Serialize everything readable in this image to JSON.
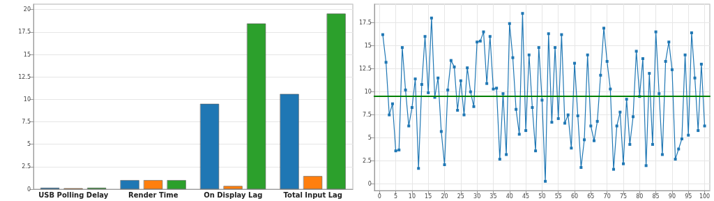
{
  "chart_data": [
    {
      "type": "bar",
      "categories": [
        "USB Polling Delay",
        "Render Time",
        "On Display Lag",
        "Total Input Lag"
      ],
      "series": [
        {
          "color": "#1f77b4",
          "values": [
            0.15,
            1.0,
            9.5,
            10.6
          ]
        },
        {
          "color": "#ff7f0e",
          "values": [
            0.1,
            1.0,
            0.35,
            1.45
          ]
        },
        {
          "color": "#2ca02c",
          "values": [
            0.15,
            1.0,
            18.45,
            19.55
          ]
        }
      ],
      "ylim": [
        0,
        20.6
      ],
      "yticks": [
        0,
        2.5,
        5,
        7.5,
        10,
        12.5,
        15,
        17.5,
        20
      ],
      "grid": "y"
    },
    {
      "type": "line",
      "x": [
        1,
        2,
        3,
        4,
        5,
        6,
        7,
        8,
        9,
        10,
        11,
        12,
        13,
        14,
        15,
        16,
        17,
        18,
        19,
        20,
        21,
        22,
        23,
        24,
        25,
        26,
        27,
        28,
        29,
        30,
        31,
        32,
        33,
        34,
        35,
        36,
        37,
        38,
        39,
        40,
        41,
        42,
        43,
        44,
        45,
        46,
        47,
        48,
        49,
        50,
        51,
        52,
        53,
        54,
        55,
        56,
        57,
        58,
        59,
        60,
        61,
        62,
        63,
        64,
        65,
        66,
        67,
        68,
        69,
        70,
        71,
        72,
        73,
        74,
        75,
        76,
        77,
        78,
        79,
        80,
        81,
        82,
        83,
        84,
        85,
        86,
        87,
        88,
        89,
        90,
        91,
        92,
        93,
        94,
        95,
        96,
        97,
        98,
        99,
        100
      ],
      "series": [
        {
          "color": "#1f77b4",
          "values": [
            16.2,
            13.2,
            7.5,
            8.7,
            3.6,
            3.7,
            14.8,
            10.2,
            6.3,
            8.3,
            11.4,
            1.7,
            10.8,
            16.0,
            9.9,
            18.0,
            9.4,
            11.5,
            5.7,
            2.1,
            10.2,
            13.4,
            12.7,
            8.0,
            11.2,
            7.5,
            12.6,
            10.0,
            8.4,
            15.4,
            15.5,
            16.5,
            10.9,
            16.0,
            10.3,
            10.4,
            2.7,
            9.8,
            3.2,
            17.4,
            13.7,
            8.1,
            5.4,
            18.5,
            5.8,
            14.0,
            8.3,
            3.6,
            14.8,
            9.1,
            0.3,
            16.3,
            6.7,
            14.8,
            7.1,
            16.2,
            6.6,
            7.5,
            3.9,
            13.1,
            7.4,
            1.8,
            4.8,
            14.0,
            6.3,
            4.7,
            6.8,
            11.8,
            16.9,
            13.3,
            10.3,
            1.6,
            6.3,
            7.8,
            2.2,
            9.2,
            4.3,
            7.3,
            14.4,
            9.5,
            13.6,
            2.0,
            12.0,
            4.3,
            16.5,
            9.8,
            3.2,
            13.3,
            15.4,
            12.4,
            2.7,
            3.8,
            4.9,
            14.0,
            5.3,
            16.4,
            11.5,
            5.8,
            13.0,
            6.3
          ]
        }
      ],
      "xlim": [
        -1.6,
        101.6
      ],
      "xticks": [
        0,
        5,
        10,
        15,
        20,
        25,
        30,
        35,
        40,
        45,
        50,
        55,
        60,
        65,
        70,
        75,
        80,
        85,
        90,
        95,
        100
      ],
      "ylim": [
        -0.7,
        19.5
      ],
      "yticks": [
        0,
        2.5,
        5,
        7.5,
        10,
        12.5,
        15,
        17.5
      ],
      "ref_lines": [
        {
          "axis": "y",
          "value": 9.5,
          "color": "#008000"
        }
      ],
      "grid": true,
      "marker": "square"
    }
  ]
}
